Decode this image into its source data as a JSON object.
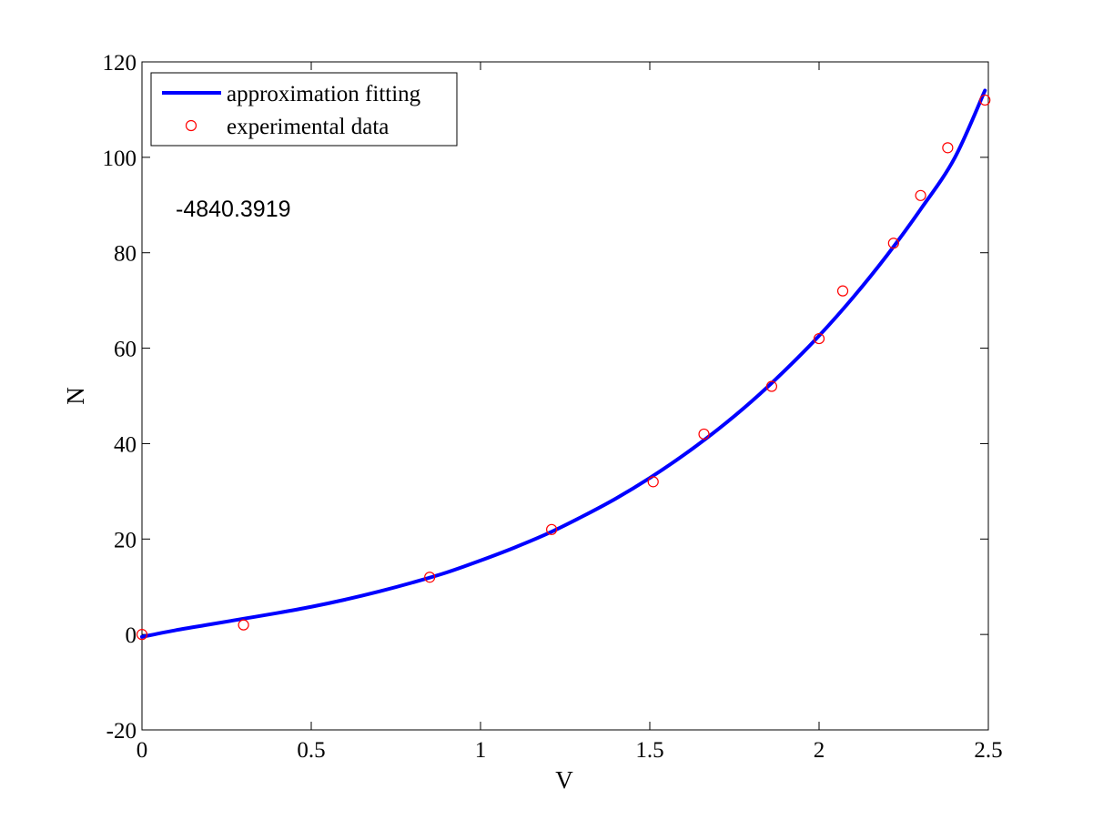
{
  "chart_data": {
    "type": "line",
    "title": "",
    "xlabel": "V",
    "ylabel": "N",
    "xlim": [
      0,
      2.5
    ],
    "ylim": [
      -20,
      120
    ],
    "xticks": [
      0,
      0.5,
      1,
      1.5,
      2,
      2.5
    ],
    "yticks": [
      -20,
      0,
      20,
      40,
      60,
      80,
      100,
      120
    ],
    "xtick_labels": [
      "0",
      "0.5",
      "1",
      "1.5",
      "2",
      "2.5"
    ],
    "ytick_labels": [
      "-20",
      "0",
      "20",
      "40",
      "60",
      "80",
      "100",
      "120"
    ],
    "grid": false,
    "legend_position": "top-left",
    "annotation": "-4840.3919",
    "series": [
      {
        "name": "approximation fitting",
        "style": "line",
        "color": "#0000ff",
        "x": [
          0,
          0.1,
          0.2,
          0.3,
          0.4,
          0.5,
          0.6,
          0.7,
          0.8,
          0.9,
          1.0,
          1.1,
          1.2,
          1.3,
          1.4,
          1.5,
          1.6,
          1.7,
          1.8,
          1.9,
          2.0,
          2.1,
          2.2,
          2.3,
          2.4,
          2.49
        ],
        "y": [
          -0.5,
          0.9,
          2.1,
          3.3,
          4.5,
          5.8,
          7.3,
          9.0,
          10.9,
          13.0,
          15.5,
          18.2,
          21.2,
          24.7,
          28.5,
          32.8,
          37.6,
          42.9,
          48.8,
          55.4,
          62.6,
          70.6,
          79.4,
          89.1,
          99.8,
          114
        ]
      },
      {
        "name": "experimental data",
        "style": "markers",
        "color": "#ff0000",
        "x": [
          0,
          0.3,
          0.85,
          1.21,
          1.51,
          1.66,
          1.86,
          2.0,
          2.07,
          2.22,
          2.3,
          2.38,
          2.49
        ],
        "y": [
          0,
          2,
          12,
          22,
          32,
          42,
          52,
          62,
          72,
          82,
          92,
          102,
          112
        ]
      }
    ]
  }
}
